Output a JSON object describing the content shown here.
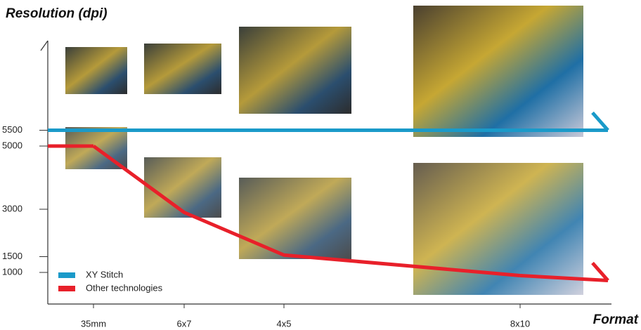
{
  "chart_data": {
    "type": "line",
    "y_label": "Resolution (dpi)",
    "x_label": "Format",
    "categories": [
      "35mm",
      "6x7",
      "4x5",
      "8x10"
    ],
    "series": [
      {
        "name": "XY Stitch",
        "color": "#1a9ac9",
        "values": [
          5500,
          5500,
          5500,
          5500
        ]
      },
      {
        "name": "Other technologies",
        "color": "#e8202a",
        "values": [
          5000,
          2900,
          1550,
          900
        ]
      }
    ],
    "ylim": [
      0,
      8000
    ],
    "yticks": [
      1000,
      1500,
      3000,
      5000,
      5500
    ]
  }
}
